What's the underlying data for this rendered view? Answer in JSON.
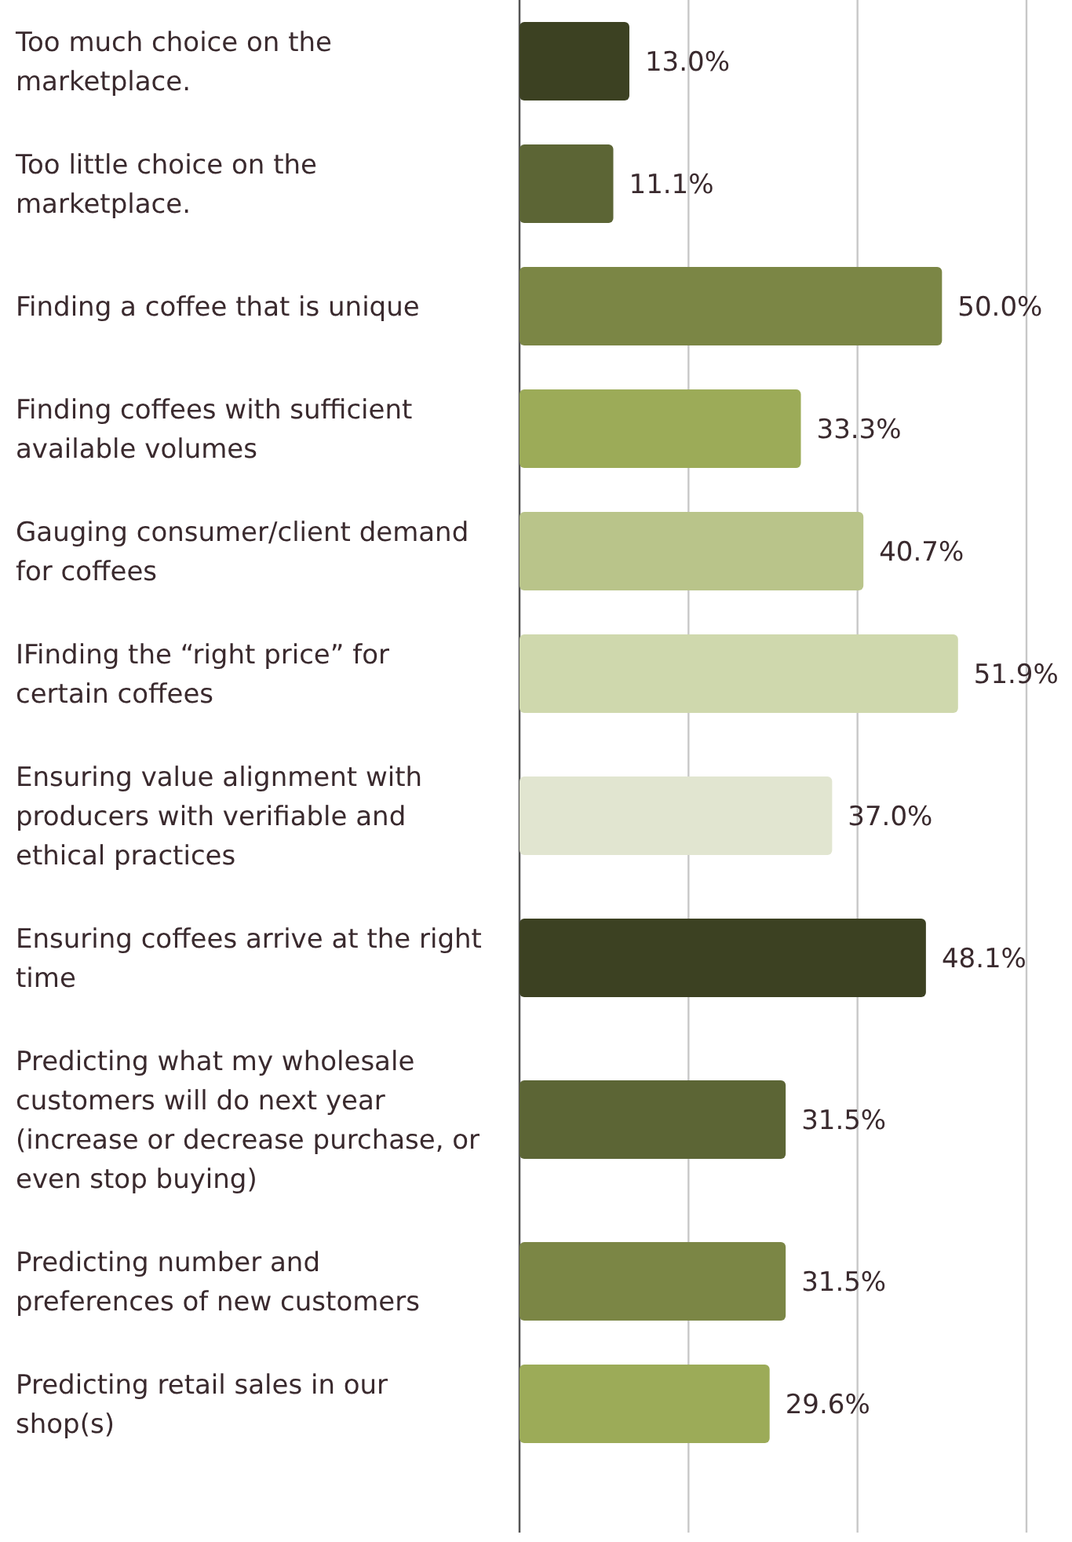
{
  "chart_data": {
    "type": "bar",
    "orientation": "horizontal",
    "categories": [
      "Too much choice on the marketplace.",
      "Too little choice on the marketplace.",
      "Finding a coffee that is unique",
      "Finding coffees with sufficient available volumes",
      "Gauging consumer/client demand for coffees",
      "IFinding the “right price” for certain coffees",
      "Ensuring value alignment with producers with verifiable and ethical practices",
      "Ensuring coffees arrive at the right time",
      "Predicting what my wholesale customers will do next year (increase or decrease purchase, or even stop buying)",
      "Predicting number and preferences of new customers",
      "Predicting retail sales in our shop(s)"
    ],
    "values": [
      13.0,
      11.1,
      50.0,
      33.3,
      40.7,
      51.9,
      37.0,
      48.1,
      31.5,
      31.5,
      29.6
    ],
    "value_labels": [
      "13.0%",
      "11.1%",
      "50.0%",
      "33.3%",
      "40.7%",
      "51.9%",
      "37.0%",
      "48.1%",
      "31.5%",
      "31.5%",
      "29.6%"
    ],
    "colors": [
      "#3c4122",
      "#5c6535",
      "#7b8645",
      "#9cab58",
      "#b9c48a",
      "#cfd8ad",
      "#e1e5d0",
      "#3c4122",
      "#5c6535",
      "#7b8645",
      "#9cab58"
    ],
    "xlim": [
      0,
      60
    ],
    "xticks": [
      {
        "value": 0,
        "label": null
      },
      {
        "value": 20,
        "label": null
      },
      {
        "value": 40,
        "label": null
      },
      {
        "value": 60,
        "label": null
      }
    ],
    "grid": "x"
  }
}
